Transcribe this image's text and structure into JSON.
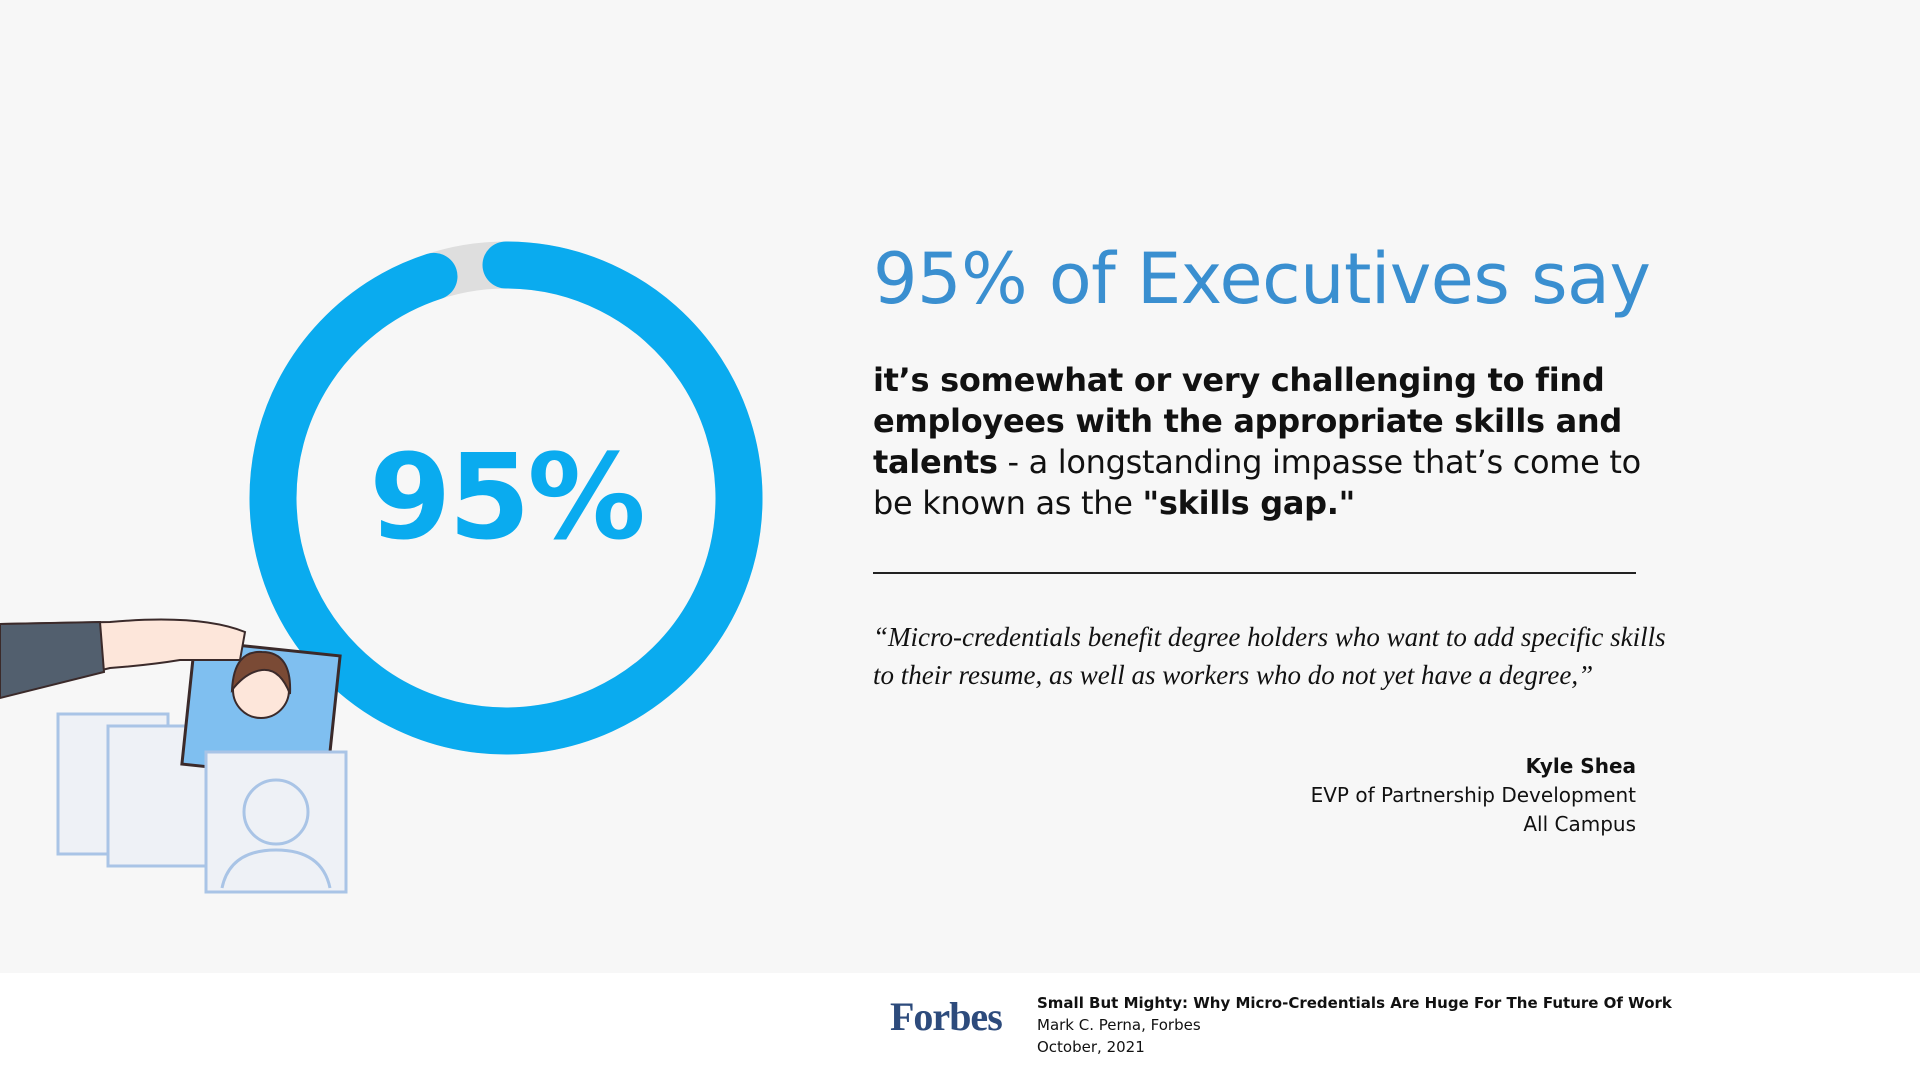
{
  "chart_data": {
    "type": "donut",
    "values": [
      95
    ],
    "value_labels": [
      "95%"
    ],
    "ylim": [
      0,
      100
    ],
    "color": "#0aabef",
    "track_color": "#dedede"
  },
  "headline": "95% of Executives say",
  "statement": [
    {
      "text": "it’s somewhat or very challenging to find employees with the appropriate skills and talents",
      "bold": true
    },
    {
      "text": " - a longstanding impasse that’s come to be known as the ",
      "bold": false
    },
    {
      "text": "\"skills gap.\"",
      "bold": true
    }
  ],
  "quote": "“Micro-credentials benefit degree holders who want to add specific skills to their resume, as well as workers who do not yet have a degree,”",
  "attribution": {
    "name": "Kyle Shea",
    "role": "EVP of Partnership Development",
    "organization": "All Campus"
  },
  "source": {
    "logo": "Forbes",
    "title": "Small But Mighty: Why Micro-Credentials Are Huge For The Future Of Work",
    "author": "Mark C. Perna, Forbes",
    "date": "October, 2021"
  }
}
